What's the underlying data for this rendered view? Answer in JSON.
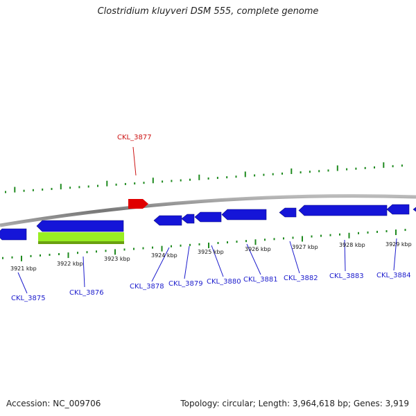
{
  "title": "Clostridium kluyveri DSM 555, complete genome",
  "footer": {
    "accession": "Accession: NC_009706",
    "summary": "Topology: circular; Length: 3,964,618 bp; Genes: 3,919"
  },
  "colors": {
    "forward_gene": "#e00000",
    "reverse_gene": "#1515d8",
    "highlight_gene": "#99ee22",
    "backbone": "#888888",
    "ticks": "#1e8a1e",
    "reverse_label": "#1a1acc",
    "forward_label": "#cc1111"
  },
  "kbp_labels": [
    "3921 kbp",
    "3922 kbp",
    "3923 kbp",
    "3924 kbp",
    "3925 kbp",
    "3926 kbp",
    "3927 kbp",
    "3928 kbp",
    "3929 kbp"
  ],
  "genes": [
    {
      "id": "CKL_3875",
      "strand": "reverse"
    },
    {
      "id": "CKL_3876",
      "strand": "reverse"
    },
    {
      "id": "CKL_3877",
      "strand": "forward"
    },
    {
      "id": "CKL_3878",
      "strand": "reverse"
    },
    {
      "id": "CKL_3879",
      "strand": "reverse"
    },
    {
      "id": "CKL_3880",
      "strand": "reverse"
    },
    {
      "id": "CKL_3881",
      "strand": "reverse"
    },
    {
      "id": "CKL_3882",
      "strand": "reverse"
    },
    {
      "id": "CKL_3883",
      "strand": "reverse"
    },
    {
      "id": "CKL_3884",
      "strand": "reverse"
    }
  ]
}
